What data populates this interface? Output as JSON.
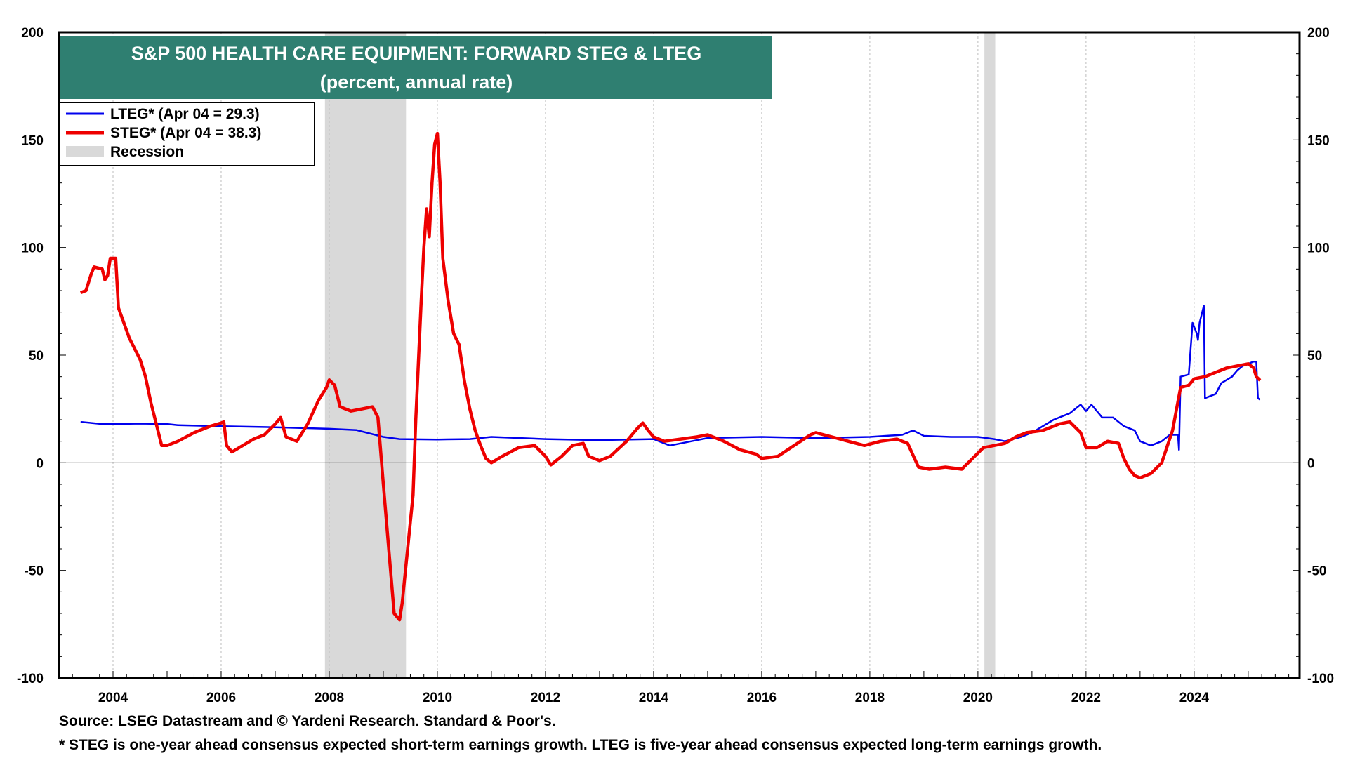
{
  "chart_data": {
    "type": "line",
    "title": "S&P 500 HEALTH CARE EQUIPMENT: FORWARD STEG & LTEG",
    "subtitle": "(percent, annual rate)",
    "xlabel": "",
    "ylabel": "",
    "xlim": [
      2003.0,
      2025.95
    ],
    "ylim": [
      -100,
      200
    ],
    "x_ticks": [
      2004,
      2006,
      2008,
      2010,
      2012,
      2014,
      2016,
      2018,
      2020,
      2022,
      2024
    ],
    "x_tick_labels": [
      "2004",
      "2006",
      "2008",
      "2010",
      "2012",
      "2014",
      "2016",
      "2018",
      "2020",
      "2022",
      "2024"
    ],
    "y_ticks": [
      -100,
      -50,
      0,
      50,
      100,
      150,
      200
    ],
    "y_tick_labels": [
      "-100",
      "-50",
      "0",
      "50",
      "100",
      "150",
      "200"
    ],
    "legend_position": "top-left",
    "recessions": [
      {
        "start": 2007.92,
        "end": 2009.42
      },
      {
        "start": 2020.12,
        "end": 2020.32
      }
    ],
    "series": [
      {
        "name": "LTEG* (Apr 04 = 29.3)",
        "color": "#0000ee",
        "points": [
          [
            2003.4,
            19
          ],
          [
            2003.6,
            18.5
          ],
          [
            2003.8,
            18
          ],
          [
            2004.0,
            18
          ],
          [
            2004.5,
            18.2
          ],
          [
            2005.0,
            18
          ],
          [
            2005.2,
            17.5
          ],
          [
            2006.0,
            17
          ],
          [
            2007.0,
            16.5
          ],
          [
            2008.0,
            15.8
          ],
          [
            2008.5,
            15.2
          ],
          [
            2009.0,
            12
          ],
          [
            2009.3,
            11
          ],
          [
            2010.0,
            10.8
          ],
          [
            2010.6,
            11
          ],
          [
            2011.0,
            12
          ],
          [
            2012.0,
            11
          ],
          [
            2013.0,
            10.5
          ],
          [
            2014.0,
            11
          ],
          [
            2014.3,
            8
          ],
          [
            2014.7,
            10
          ],
          [
            2015.0,
            11.5
          ],
          [
            2016.0,
            12
          ],
          [
            2017.0,
            11.5
          ],
          [
            2018.0,
            12
          ],
          [
            2018.6,
            13
          ],
          [
            2018.8,
            15
          ],
          [
            2019.0,
            12.5
          ],
          [
            2019.5,
            12
          ],
          [
            2020.0,
            12
          ],
          [
            2020.3,
            11
          ],
          [
            2020.5,
            10
          ],
          [
            2020.8,
            12
          ],
          [
            2021.0,
            14
          ],
          [
            2021.4,
            20
          ],
          [
            2021.7,
            23
          ],
          [
            2021.9,
            27
          ],
          [
            2022.0,
            24
          ],
          [
            2022.1,
            27
          ],
          [
            2022.3,
            21
          ],
          [
            2022.5,
            21
          ],
          [
            2022.7,
            17
          ],
          [
            2022.9,
            15
          ],
          [
            2023.0,
            10
          ],
          [
            2023.2,
            8
          ],
          [
            2023.4,
            10
          ],
          [
            2023.55,
            13
          ],
          [
            2023.7,
            13
          ],
          [
            2023.72,
            6
          ],
          [
            2023.75,
            40
          ],
          [
            2023.9,
            41
          ],
          [
            2023.97,
            65
          ],
          [
            2024.05,
            60
          ],
          [
            2024.07,
            57
          ],
          [
            2024.1,
            65
          ],
          [
            2024.15,
            70
          ],
          [
            2024.18,
            73
          ],
          [
            2024.2,
            30
          ],
          [
            2024.4,
            32
          ],
          [
            2024.5,
            37
          ],
          [
            2024.7,
            40
          ],
          [
            2024.8,
            43
          ],
          [
            2024.9,
            45
          ],
          [
            2025.1,
            47
          ],
          [
            2025.15,
            47
          ],
          [
            2025.18,
            30
          ],
          [
            2025.22,
            29.3
          ]
        ]
      },
      {
        "name": "STEG* (Apr 04 = 38.3)",
        "color": "#ee0000",
        "points": [
          [
            2003.4,
            79
          ],
          [
            2003.5,
            80
          ],
          [
            2003.6,
            88
          ],
          [
            2003.65,
            91
          ],
          [
            2003.8,
            90
          ],
          [
            2003.85,
            85
          ],
          [
            2003.9,
            87
          ],
          [
            2003.95,
            95
          ],
          [
            2004.05,
            95
          ],
          [
            2004.1,
            72
          ],
          [
            2004.3,
            58
          ],
          [
            2004.5,
            48
          ],
          [
            2004.6,
            40
          ],
          [
            2004.7,
            28
          ],
          [
            2004.8,
            18
          ],
          [
            2004.9,
            8
          ],
          [
            2005.0,
            8
          ],
          [
            2005.2,
            10
          ],
          [
            2005.5,
            14
          ],
          [
            2005.8,
            17
          ],
          [
            2006.0,
            18.5
          ],
          [
            2006.05,
            19
          ],
          [
            2006.1,
            8
          ],
          [
            2006.2,
            5
          ],
          [
            2006.4,
            8
          ],
          [
            2006.6,
            11
          ],
          [
            2006.8,
            13
          ],
          [
            2007.0,
            18
          ],
          [
            2007.1,
            21
          ],
          [
            2007.2,
            12
          ],
          [
            2007.4,
            10
          ],
          [
            2007.6,
            18
          ],
          [
            2007.8,
            29
          ],
          [
            2007.95,
            35
          ],
          [
            2008.0,
            38.5
          ],
          [
            2008.1,
            36
          ],
          [
            2008.2,
            26
          ],
          [
            2008.4,
            24
          ],
          [
            2008.6,
            25
          ],
          [
            2008.8,
            26
          ],
          [
            2008.9,
            21
          ],
          [
            2009.0,
            -10
          ],
          [
            2009.1,
            -40
          ],
          [
            2009.2,
            -70
          ],
          [
            2009.3,
            -73
          ],
          [
            2009.35,
            -65
          ],
          [
            2009.45,
            -40
          ],
          [
            2009.55,
            -15
          ],
          [
            2009.6,
            20
          ],
          [
            2009.7,
            75
          ],
          [
            2009.75,
            100
          ],
          [
            2009.8,
            118
          ],
          [
            2009.85,
            105
          ],
          [
            2009.9,
            130
          ],
          [
            2009.95,
            148
          ],
          [
            2010.0,
            153
          ],
          [
            2010.05,
            130
          ],
          [
            2010.1,
            95
          ],
          [
            2010.2,
            75
          ],
          [
            2010.3,
            60
          ],
          [
            2010.4,
            55
          ],
          [
            2010.5,
            38
          ],
          [
            2010.6,
            25
          ],
          [
            2010.7,
            15
          ],
          [
            2010.8,
            8
          ],
          [
            2010.9,
            2
          ],
          [
            2011.0,
            0
          ],
          [
            2011.2,
            3
          ],
          [
            2011.5,
            7
          ],
          [
            2011.8,
            8
          ],
          [
            2012.0,
            3
          ],
          [
            2012.1,
            -1
          ],
          [
            2012.3,
            3
          ],
          [
            2012.5,
            8
          ],
          [
            2012.7,
            9
          ],
          [
            2012.8,
            3
          ],
          [
            2013.0,
            1
          ],
          [
            2013.2,
            3
          ],
          [
            2013.5,
            10
          ],
          [
            2013.7,
            16
          ],
          [
            2013.8,
            18.5
          ],
          [
            2013.9,
            15
          ],
          [
            2014.0,
            12
          ],
          [
            2014.2,
            10
          ],
          [
            2014.5,
            11
          ],
          [
            2014.8,
            12
          ],
          [
            2015.0,
            13
          ],
          [
            2015.3,
            10
          ],
          [
            2015.6,
            6
          ],
          [
            2015.9,
            4
          ],
          [
            2016.0,
            2
          ],
          [
            2016.3,
            3
          ],
          [
            2016.6,
            8
          ],
          [
            2016.9,
            13
          ],
          [
            2017.0,
            14
          ],
          [
            2017.3,
            12
          ],
          [
            2017.6,
            10
          ],
          [
            2017.9,
            8
          ],
          [
            2018.2,
            10
          ],
          [
            2018.5,
            11
          ],
          [
            2018.7,
            9
          ],
          [
            2018.9,
            -2
          ],
          [
            2019.1,
            -3
          ],
          [
            2019.4,
            -2
          ],
          [
            2019.7,
            -3
          ],
          [
            2019.9,
            2
          ],
          [
            2020.1,
            7
          ],
          [
            2020.3,
            8
          ],
          [
            2020.5,
            9
          ],
          [
            2020.7,
            12
          ],
          [
            2020.9,
            14
          ],
          [
            2021.2,
            15
          ],
          [
            2021.5,
            18
          ],
          [
            2021.7,
            19
          ],
          [
            2021.9,
            14
          ],
          [
            2022.0,
            7
          ],
          [
            2022.2,
            7
          ],
          [
            2022.4,
            10
          ],
          [
            2022.6,
            9
          ],
          [
            2022.7,
            2
          ],
          [
            2022.8,
            -3
          ],
          [
            2022.9,
            -6
          ],
          [
            2023.0,
            -7
          ],
          [
            2023.2,
            -5
          ],
          [
            2023.4,
            0
          ],
          [
            2023.6,
            15
          ],
          [
            2023.75,
            35
          ],
          [
            2023.9,
            36
          ],
          [
            2024.0,
            39
          ],
          [
            2024.2,
            40
          ],
          [
            2024.4,
            42
          ],
          [
            2024.6,
            44
          ],
          [
            2024.8,
            45
          ],
          [
            2025.0,
            46
          ],
          [
            2025.1,
            44
          ],
          [
            2025.15,
            40
          ],
          [
            2025.22,
            38.3
          ]
        ]
      }
    ],
    "recession_label": "Recession"
  },
  "footnotes": {
    "source": "Source: LSEG Datastream and © Yardeni Research. Standard & Poor's.",
    "definition": "* STEG is one-year ahead consensus expected short-term earnings growth. LTEG is five-year ahead consensus expected long-term earnings growth."
  },
  "colors": {
    "title_bg": "#2f7f71",
    "title_text": "#ffffff",
    "recession_fill": "#d9d9d9",
    "grid": "#bdbdbd"
  }
}
